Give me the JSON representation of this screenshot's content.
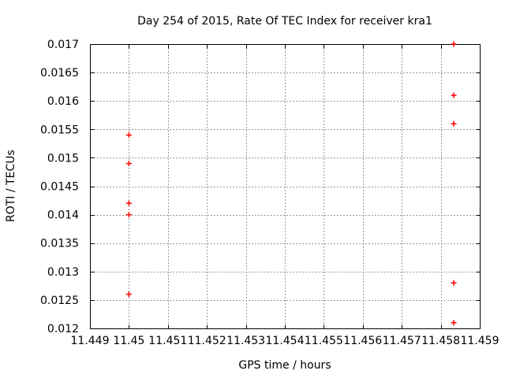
{
  "page": {
    "background": "#ffffff"
  },
  "chart_data": {
    "type": "scatter",
    "title": "Day 254 of 2015, Rate Of TEC Index for receiver kra1",
    "xlabel": "GPS time / hours",
    "ylabel": "ROTI / TECUs",
    "xlim": [
      11.449,
      11.459
    ],
    "ylim": [
      0.012,
      0.017
    ],
    "grid": true,
    "legend": "none",
    "marker_style": "plus",
    "colors": {
      "marker": "#ff0000",
      "grid": "#999999",
      "axis": "#000000",
      "text": "#000000",
      "background": "#ffffff"
    },
    "x_ticks": [
      {
        "value": 11.449,
        "label": "11.449"
      },
      {
        "value": 11.45,
        "label": "11.45"
      },
      {
        "value": 11.451,
        "label": "11.451"
      },
      {
        "value": 11.452,
        "label": "11.452"
      },
      {
        "value": 11.453,
        "label": "11.453"
      },
      {
        "value": 11.454,
        "label": "11.454"
      },
      {
        "value": 11.455,
        "label": "11.455"
      },
      {
        "value": 11.456,
        "label": "11.456"
      },
      {
        "value": 11.457,
        "label": "11.457"
      },
      {
        "value": 11.458,
        "label": "11.458"
      },
      {
        "value": 11.459,
        "label": "11.459"
      }
    ],
    "y_ticks": [
      {
        "value": 0.012,
        "label": "0.012"
      },
      {
        "value": 0.0125,
        "label": "0.0125"
      },
      {
        "value": 0.013,
        "label": "0.013"
      },
      {
        "value": 0.0135,
        "label": "0.0135"
      },
      {
        "value": 0.014,
        "label": "0.014"
      },
      {
        "value": 0.0145,
        "label": "0.0145"
      },
      {
        "value": 0.015,
        "label": "0.015"
      },
      {
        "value": 0.0155,
        "label": "0.0155"
      },
      {
        "value": 0.016,
        "label": "0.016"
      },
      {
        "value": 0.0165,
        "label": "0.0165"
      },
      {
        "value": 0.017,
        "label": "0.017"
      }
    ],
    "series": [
      {
        "name": "ROTI",
        "points": [
          [
            11.45,
            0.0154
          ],
          [
            11.45,
            0.0149
          ],
          [
            11.45,
            0.0142
          ],
          [
            11.45,
            0.014
          ],
          [
            11.45,
            0.0126
          ],
          [
            11.458333,
            0.017
          ],
          [
            11.458333,
            0.0161
          ],
          [
            11.458333,
            0.0156
          ],
          [
            11.458333,
            0.0128
          ],
          [
            11.458333,
            0.0121
          ]
        ]
      }
    ]
  }
}
